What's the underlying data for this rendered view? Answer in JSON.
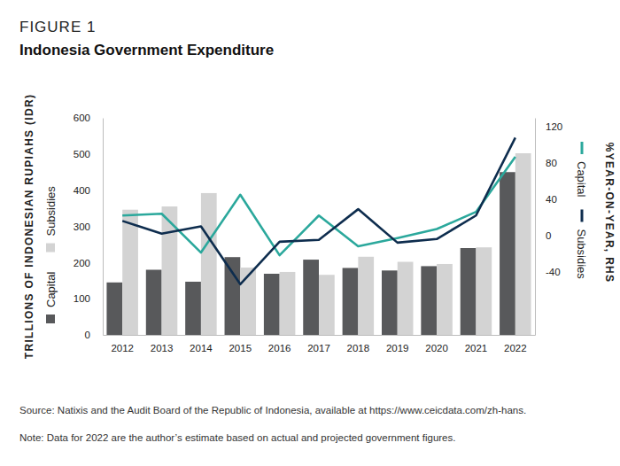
{
  "chart_data": {
    "type": "bar",
    "figure_number": "FIGURE 1",
    "title": "Indonesia Government Expenditure",
    "y_label": "TRILLIONS OF INDONESIAN RUPIAHS (IDR)",
    "y2_label": "%YEAR-ON-YEAR, RHS",
    "categories": [
      "2012",
      "2013",
      "2014",
      "2015",
      "2016",
      "2017",
      "2018",
      "2019",
      "2020",
      "2021",
      "2022"
    ],
    "series": [
      {
        "name": "Capital",
        "type": "bar",
        "color": "#58595b",
        "values": [
          145,
          180,
          147,
          215,
          169,
          208,
          185,
          178,
          190,
          240,
          450
        ]
      },
      {
        "name": "Subsidies",
        "type": "bar",
        "color": "#d3d3d3",
        "values": [
          346,
          355,
          392,
          186,
          174,
          166,
          216,
          202,
          196,
          242,
          502
        ]
      },
      {
        "name": "Capital",
        "type": "line",
        "axis": "y2",
        "color": "#2ba89c",
        "values": [
          22,
          24,
          -19,
          45,
          -22,
          22,
          -12,
          -3,
          7,
          26,
          87
        ]
      },
      {
        "name": "Subsidies",
        "type": "line",
        "axis": "y2",
        "color": "#0e2d4e",
        "values": [
          16,
          2,
          10,
          -54,
          -7,
          -5,
          29,
          -8,
          -4,
          22,
          108
        ]
      }
    ],
    "ylim": [
      0,
      600
    ],
    "yticks": [
      0,
      100,
      200,
      300,
      400,
      500,
      600
    ],
    "y2lim": [
      -110,
      130
    ],
    "y2ticks": [
      -40,
      0,
      40,
      80,
      120
    ],
    "grid": false,
    "source": "Source: Natixis and the Audit Board of the Republic of Indonesia, available at https://www.ceicdata.com/zh-hans.",
    "note": "Note: Data for 2022 are the author’s estimate based on actual and projected government figures."
  }
}
